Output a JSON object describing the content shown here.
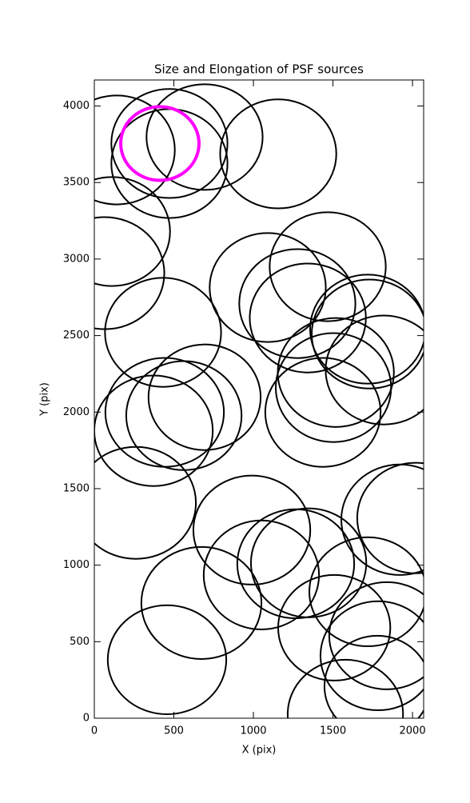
{
  "chart_data": {
    "type": "ellipse",
    "title": "Size and Elongation of PSF sources",
    "xlabel": "X (pix)",
    "ylabel": "Y (pix)",
    "xlim": [
      0,
      2070
    ],
    "ylim": [
      0,
      4170
    ],
    "xticks": [
      0,
      500,
      1000,
      1500,
      2000
    ],
    "yticks": [
      0,
      500,
      1000,
      1500,
      2000,
      2500,
      3000,
      3500,
      4000
    ],
    "ellipses": {
      "color": "#000000",
      "linewidth": 2,
      "x": [
        141,
        472,
        472,
        693,
        1156,
        111,
        65,
        432,
        1090,
        1467,
        1276,
        1342,
        1719,
        1729,
        1518,
        1819,
        1503,
        1437,
        693,
        442,
        563,
        372,
        261,
        990,
        1266,
        1050,
        1347,
        673,
        1920,
        2020,
        1719,
        1508,
        1839,
        1784,
        1779,
        457,
        1578
      ],
      "y": [
        3713,
        3755,
        3624,
        3797,
        3687,
        3180,
        2908,
        2521,
        2814,
        2950,
        2709,
        2615,
        2542,
        2510,
        2259,
        2275,
        2160,
        1998,
        2097,
        1998,
        1977,
        1878,
        1407,
        1229,
        1009,
        936,
        1015,
        753,
        1297,
        1308,
        826,
        591,
        539,
        408,
        209,
        382,
        26
      ],
      "width": [
        730,
        730,
        730,
        730,
        730,
        730,
        750,
        730,
        730,
        730,
        730,
        730,
        725,
        725,
        730,
        730,
        725,
        725,
        705,
        745,
        725,
        745,
        755,
        735,
        735,
        725,
        725,
        755,
        735,
        735,
        735,
        705,
        725,
        725,
        665,
        745,
        725
      ],
      "height": [
        712,
        712,
        712,
        690,
        712,
        712,
        732,
        712,
        712,
        712,
        712,
        712,
        712,
        712,
        712,
        712,
        712,
        712,
        690,
        712,
        712,
        722,
        732,
        712,
        712,
        712,
        712,
        732,
        722,
        722,
        712,
        690,
        700,
        712,
        660,
        712,
        712
      ]
    },
    "highlight": {
      "color": "#ff00ff",
      "linewidth": 4,
      "x": [
        412
      ],
      "y": [
        3755
      ],
      "width": [
        492
      ],
      "height": [
        481
      ]
    }
  }
}
